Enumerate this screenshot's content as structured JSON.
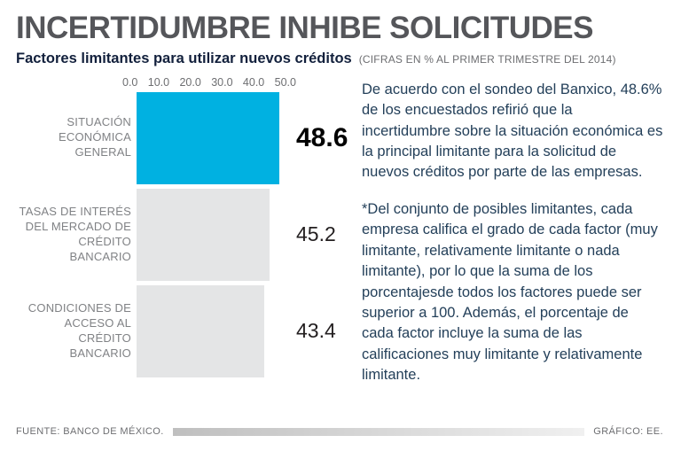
{
  "page": {
    "title": "INCERTIDUMBRE INHIBE SOLICITUDES",
    "subtitle": "Factores limitantes para utilizar nuevos créditos",
    "subtitle_note": "(CIFRAS EN % AL PRIMER TRIMESTRE DEL 2014)"
  },
  "chart_data": {
    "type": "bar",
    "orientation": "horizontal",
    "title": "Factores limitantes para utilizar nuevos créditos",
    "unit": "% al primer trimestre del 2014",
    "categories": [
      "SITUACIÓN ECONÓMICA GENERAL",
      "TASAS DE INTERÉS DEL MERCADO DE CRÉDITO BANCARIO",
      "CONDICIONES DE ACCESO AL CRÉDITO BANCARIO"
    ],
    "values": [
      48.6,
      45.2,
      43.4
    ],
    "value_labels": [
      "48.6",
      "45.2",
      "43.4"
    ],
    "axis_ticks": [
      "0.0",
      "10.0",
      "20.0",
      "30.0",
      "40.0",
      "50.0"
    ],
    "xlim": [
      0,
      50
    ],
    "grid": false,
    "legend": false,
    "highlight_index": 0,
    "highlight_color": "#00b1e1",
    "bar_color": "#e4e5e6"
  },
  "body": {
    "paragraph1": "De acuerdo con el sondeo del Banxico, 48.6% de los encuestados refirió que la incertidumbre sobre la situación económica es la principal limitante para la solicitud de nuevos créditos por parte de las empresas.",
    "paragraph2": "*Del conjunto de posibles limitantes, cada empresa califica el grado de cada factor (muy limitante, relativamente limitante o nada limitante), por lo que la suma de los porcentajesde todos los factores puede ser superior a 100. Además, el porcentaje de cada factor incluye la suma de las calificaciones muy limitante y relativamente limitante."
  },
  "footer": {
    "source": "FUENTE: BANCO DE MÉXICO.",
    "credit": "GRÁFICO: EE."
  }
}
